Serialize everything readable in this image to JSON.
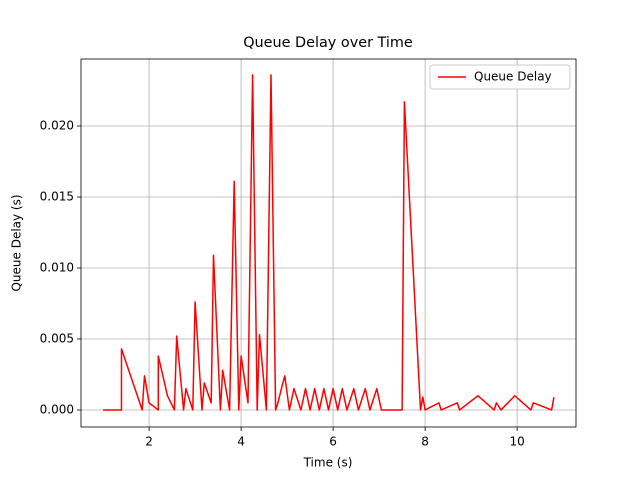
{
  "chart_data": {
    "type": "line",
    "title": "Queue Delay over Time",
    "x_label": "Time (s)",
    "y_label": "Queue Delay (s)",
    "x": [
      1.0,
      1.4,
      1.4,
      1.85,
      1.9,
      2.0,
      2.2,
      2.2,
      2.4,
      2.55,
      2.6,
      2.75,
      2.8,
      2.95,
      3.0,
      3.15,
      3.2,
      3.35,
      3.4,
      3.55,
      3.6,
      3.75,
      3.85,
      3.95,
      4.0,
      4.15,
      4.25,
      4.35,
      4.4,
      4.55,
      4.65,
      4.75,
      4.8,
      4.9,
      4.95,
      5.05,
      5.15,
      5.3,
      5.4,
      5.5,
      5.6,
      5.7,
      5.8,
      5.9,
      6.0,
      6.1,
      6.2,
      6.3,
      6.45,
      6.55,
      6.7,
      6.8,
      6.95,
      7.05,
      7.5,
      7.55,
      7.9,
      7.95,
      8.0,
      8.3,
      8.35,
      8.7,
      8.75,
      9.15,
      9.5,
      9.55,
      9.65,
      9.95,
      10.3,
      10.35,
      10.75,
      10.8
    ],
    "series": [
      {
        "name": "Queue Delay",
        "color": "#ff0000",
        "values": [
          0,
          0,
          0.0043,
          0,
          0.0024,
          0.0005,
          0,
          0.0038,
          0.001,
          0,
          0.0052,
          0,
          0.0015,
          0,
          0.0076,
          0,
          0.0019,
          0.0005,
          0.0109,
          0,
          0.0028,
          0,
          0.0161,
          0,
          0.0038,
          0.0005,
          0.0236,
          0,
          0.0053,
          0,
          0.0236,
          0,
          0.0005,
          0.0018,
          0.0024,
          0,
          0.0015,
          0,
          0.0015,
          0,
          0.0015,
          0,
          0.0015,
          0,
          0.0015,
          0,
          0.0015,
          0,
          0.0015,
          0,
          0.0015,
          0,
          0.0015,
          0,
          0,
          0.0217,
          0,
          0.0009,
          0,
          0.0005,
          0,
          0.0005,
          0,
          0.001,
          0,
          0.0005,
          0,
          0.001,
          0,
          0.0005,
          0,
          0.0009
        ]
      }
    ],
    "xlim": [
      0.52,
      11.28
    ],
    "ylim": [
      -0.0012,
      0.02472
    ],
    "xticks": [
      2,
      4,
      6,
      8,
      10
    ],
    "yticks": [
      {
        "value": 0,
        "label": "0.000"
      },
      {
        "value": 0.005,
        "label": "0.005"
      },
      {
        "value": 0.01,
        "label": "0.010"
      },
      {
        "value": 0.015,
        "label": "0.015"
      },
      {
        "value": 0.02,
        "label": "0.020"
      }
    ],
    "grid": true,
    "legend": "upper right"
  }
}
